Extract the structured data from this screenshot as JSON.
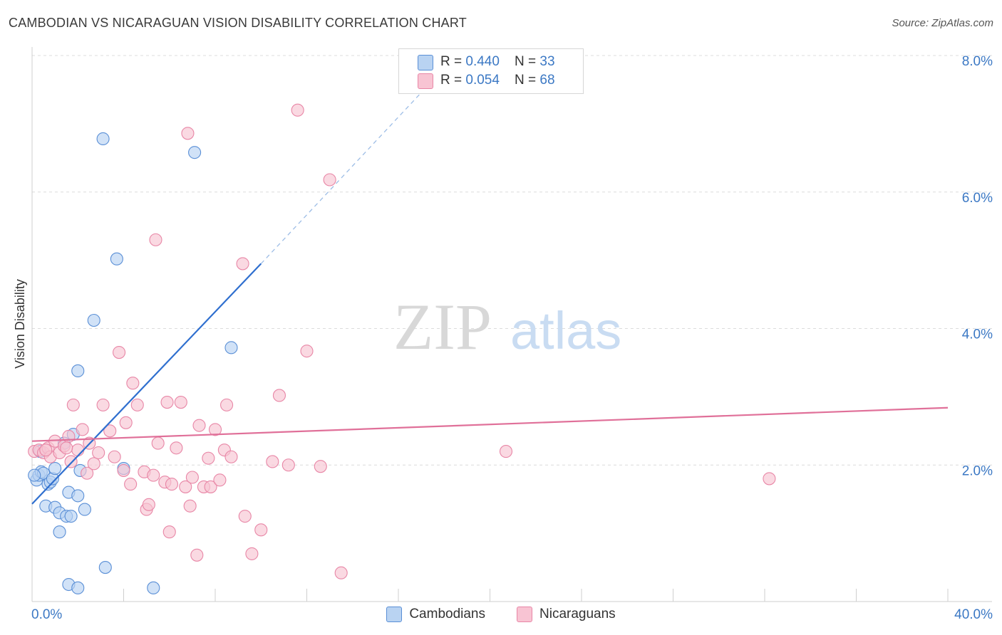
{
  "title": "CAMBODIAN VS NICARAGUAN VISION DISABILITY CORRELATION CHART",
  "source": "Source: ZipAtlas.com",
  "watermark": {
    "zip": "ZIP",
    "atlas": "atlas"
  },
  "colors": {
    "blue_fill": "#b9d3f2",
    "blue_stroke": "#5a8fd6",
    "blue_line": "#2f6fcf",
    "pink_fill": "#f8c4d3",
    "pink_stroke": "#e886a6",
    "pink_line": "#e07099",
    "axis_text": "#3b78c4",
    "grid": "#dcdcdc"
  },
  "legend_top": [
    {
      "series": "Cambodians",
      "r_label": "R = ",
      "r_value": "0.440",
      "n_label": "N = ",
      "n_value": "33"
    },
    {
      "series": "Nicaraguans",
      "r_label": "R = ",
      "r_value": "0.054",
      "n_label": "N = ",
      "n_value": "68"
    }
  ],
  "chart_data": {
    "type": "scatter",
    "title": "CAMBODIAN VS NICARAGUAN VISION DISABILITY CORRELATION CHART",
    "xlabel": "",
    "ylabel": "Vision Disability",
    "xlim": [
      0,
      40
    ],
    "ylim": [
      0,
      8
    ],
    "x_tick_labels": [
      "0.0%",
      "40.0%"
    ],
    "y_ticks": [
      2,
      4,
      6,
      8
    ],
    "y_tick_labels": [
      "2.0%",
      "4.0%",
      "6.0%",
      "8.0%"
    ],
    "grid": true,
    "legend": [
      "Cambodians",
      "Nicaraguans"
    ],
    "series": [
      {
        "name": "Cambodians",
        "color": "#b9d3f2",
        "points": [
          [
            0.2,
            1.78
          ],
          [
            0.3,
            1.85
          ],
          [
            0.4,
            1.9
          ],
          [
            0.5,
            1.88
          ],
          [
            0.6,
            1.4
          ],
          [
            0.7,
            1.72
          ],
          [
            0.8,
            1.75
          ],
          [
            0.9,
            1.8
          ],
          [
            1.0,
            1.95
          ],
          [
            1.0,
            1.38
          ],
          [
            1.2,
            1.3
          ],
          [
            1.2,
            1.02
          ],
          [
            1.4,
            2.32
          ],
          [
            1.5,
            1.25
          ],
          [
            1.6,
            1.6
          ],
          [
            1.7,
            1.25
          ],
          [
            2.0,
            1.55
          ],
          [
            2.3,
            1.35
          ],
          [
            2.1,
            1.92
          ],
          [
            1.8,
            2.45
          ],
          [
            2.0,
            3.38
          ],
          [
            2.7,
            4.12
          ],
          [
            3.1,
            6.78
          ],
          [
            3.7,
            5.02
          ],
          [
            4.0,
            1.95
          ],
          [
            3.2,
            0.5
          ],
          [
            1.6,
            0.25
          ],
          [
            2.0,
            0.2
          ],
          [
            5.3,
            0.2
          ],
          [
            7.1,
            6.58
          ],
          [
            8.7,
            3.72
          ],
          [
            0.1,
            1.85
          ],
          [
            0.35,
            2.2
          ]
        ],
        "trend": {
          "x0": 0,
          "y0": 1.43,
          "x1": 10.0,
          "y1": 4.95,
          "dashed_to_x": 17.4,
          "dashed_to_y": 7.6
        }
      },
      {
        "name": "Nicaraguans",
        "color": "#f8c4d3",
        "points": [
          [
            0.1,
            2.2
          ],
          [
            0.3,
            2.22
          ],
          [
            0.5,
            2.18
          ],
          [
            0.7,
            2.25
          ],
          [
            0.8,
            2.12
          ],
          [
            1.0,
            2.35
          ],
          [
            1.2,
            2.18
          ],
          [
            1.4,
            2.28
          ],
          [
            1.6,
            2.42
          ],
          [
            1.7,
            2.05
          ],
          [
            1.8,
            2.88
          ],
          [
            2.0,
            2.22
          ],
          [
            2.2,
            2.52
          ],
          [
            2.4,
            1.88
          ],
          [
            2.5,
            2.32
          ],
          [
            2.7,
            2.02
          ],
          [
            2.9,
            2.18
          ],
          [
            3.1,
            2.88
          ],
          [
            3.4,
            2.5
          ],
          [
            3.6,
            2.12
          ],
          [
            3.8,
            3.65
          ],
          [
            4.0,
            1.92
          ],
          [
            4.1,
            2.62
          ],
          [
            4.3,
            1.72
          ],
          [
            4.4,
            3.2
          ],
          [
            4.6,
            2.88
          ],
          [
            4.9,
            1.9
          ],
          [
            5.0,
            1.35
          ],
          [
            5.1,
            1.42
          ],
          [
            5.3,
            1.85
          ],
          [
            5.4,
            5.3
          ],
          [
            5.5,
            2.32
          ],
          [
            5.8,
            1.75
          ],
          [
            5.9,
            2.92
          ],
          [
            6.0,
            1.02
          ],
          [
            6.1,
            1.72
          ],
          [
            6.3,
            2.25
          ],
          [
            6.5,
            2.92
          ],
          [
            6.7,
            1.68
          ],
          [
            6.8,
            6.86
          ],
          [
            6.9,
            1.4
          ],
          [
            7.0,
            1.82
          ],
          [
            7.2,
            0.68
          ],
          [
            7.3,
            2.58
          ],
          [
            7.5,
            1.68
          ],
          [
            7.7,
            2.1
          ],
          [
            7.8,
            1.68
          ],
          [
            8.0,
            2.52
          ],
          [
            8.2,
            1.78
          ],
          [
            8.4,
            2.22
          ],
          [
            8.5,
            2.88
          ],
          [
            8.7,
            2.12
          ],
          [
            9.2,
            4.95
          ],
          [
            9.3,
            1.25
          ],
          [
            9.6,
            0.7
          ],
          [
            10.0,
            1.05
          ],
          [
            10.5,
            2.05
          ],
          [
            10.8,
            3.02
          ],
          [
            11.2,
            2.0
          ],
          [
            11.6,
            7.2
          ],
          [
            12.0,
            3.67
          ],
          [
            12.6,
            1.98
          ],
          [
            13.0,
            6.18
          ],
          [
            13.5,
            0.42
          ],
          [
            20.7,
            2.2
          ],
          [
            32.2,
            1.8
          ],
          [
            1.5,
            2.25
          ],
          [
            0.6,
            2.22
          ]
        ],
        "trend": {
          "x0": 0,
          "y0": 2.35,
          "x1": 40.0,
          "y1": 2.84
        }
      }
    ]
  }
}
